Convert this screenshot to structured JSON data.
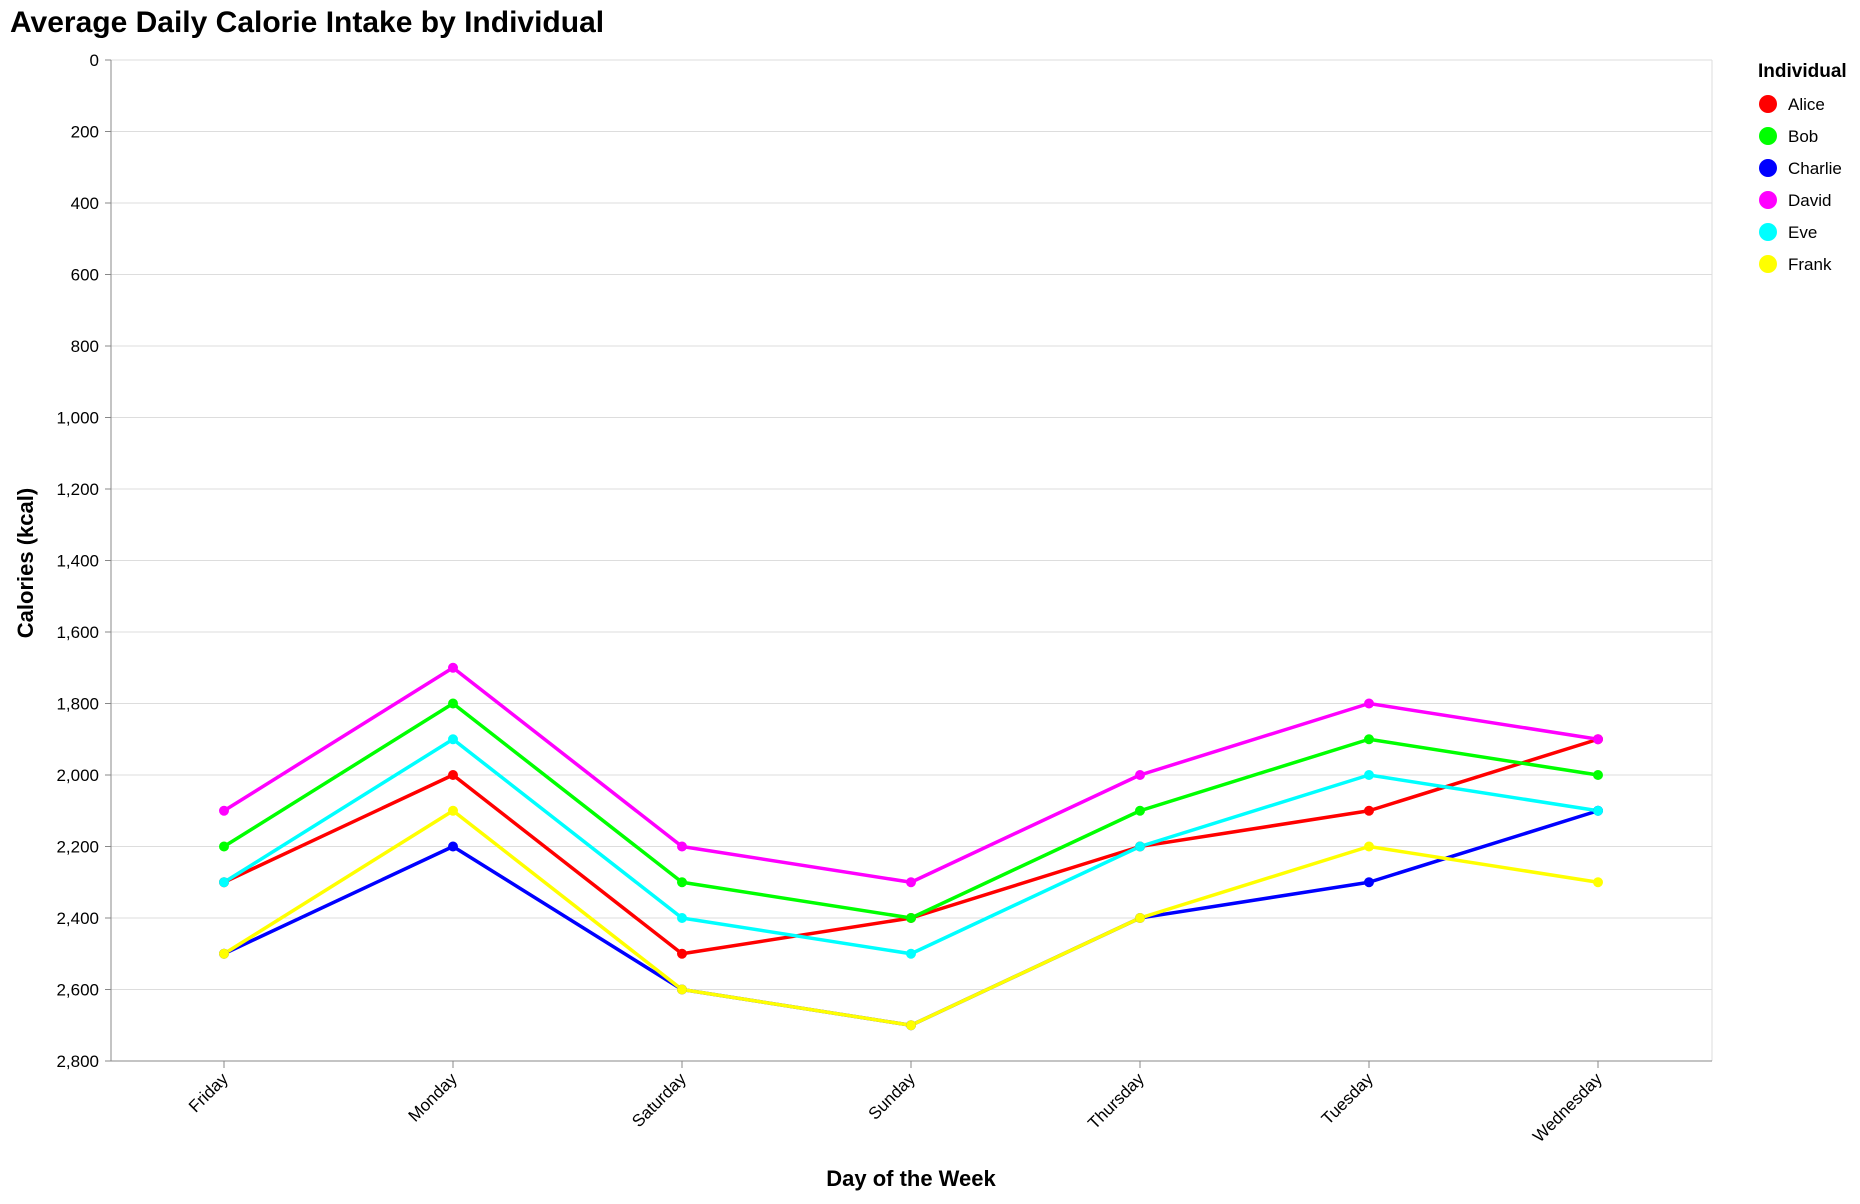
{
  "chart_data": {
    "type": "line",
    "title": "Average Daily Calorie Intake by Individual",
    "xlabel": "Day of the Week",
    "ylabel": "Calories (kcal)",
    "categories": [
      "Friday",
      "Monday",
      "Saturday",
      "Sunday",
      "Thursday",
      "Tuesday",
      "Wednesday"
    ],
    "ylim": [
      0,
      2800
    ],
    "y_axis_reversed": true,
    "y_ticks": [
      0,
      200,
      400,
      600,
      800,
      1000,
      1200,
      1400,
      1600,
      1800,
      2000,
      2200,
      2400,
      2600,
      2800
    ],
    "grid": "horizontal",
    "legend_title": "Individual",
    "legend_position": "top-right",
    "series": [
      {
        "name": "Alice",
        "color": "#ff0000",
        "values": [
          2300,
          2000,
          2500,
          2400,
          2200,
          2100,
          1900
        ]
      },
      {
        "name": "Bob",
        "color": "#00ff00",
        "values": [
          2200,
          1800,
          2300,
          2400,
          2100,
          1900,
          2000
        ]
      },
      {
        "name": "Charlie",
        "color": "#0000ff",
        "values": [
          2500,
          2200,
          2600,
          2700,
          2400,
          2300,
          2100
        ]
      },
      {
        "name": "David",
        "color": "#ff00ff",
        "values": [
          2100,
          1700,
          2200,
          2300,
          2000,
          1800,
          1900
        ]
      },
      {
        "name": "Eve",
        "color": "#00ffff",
        "values": [
          2300,
          1900,
          2400,
          2500,
          2200,
          2000,
          2100
        ]
      },
      {
        "name": "Frank",
        "color": "#ffff00",
        "values": [
          2500,
          2100,
          2600,
          2700,
          2400,
          2200,
          2300
        ]
      }
    ]
  }
}
